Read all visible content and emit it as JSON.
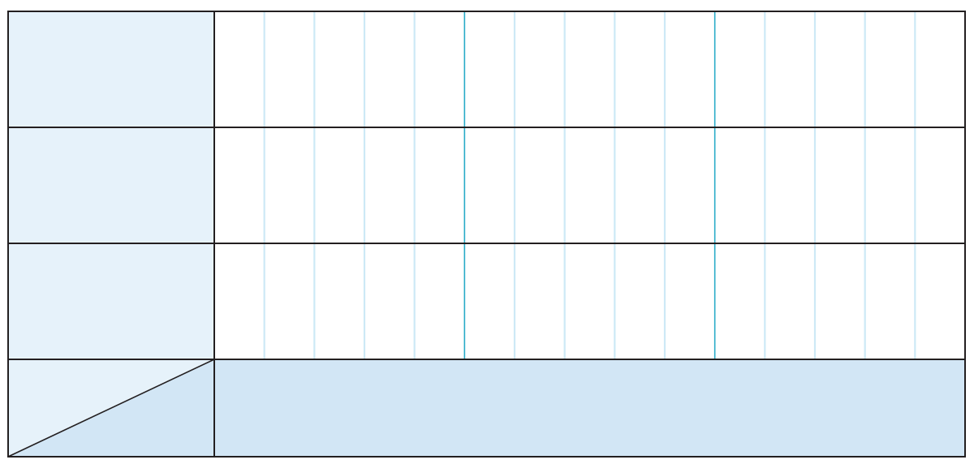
{
  "table": {
    "rows": 3,
    "columns_per_row": 15,
    "major_column_interval": 5,
    "row_labels": [
      "",
      "",
      ""
    ],
    "footer_label": ""
  },
  "colors": {
    "outline": "#231f20",
    "label_fill": "#e6f2fa",
    "footer_fill": "#d2e6f5",
    "minor_gridline": "#cde9f6",
    "major_gridline": "#29abc8",
    "cell_fill": "#ffffff"
  }
}
